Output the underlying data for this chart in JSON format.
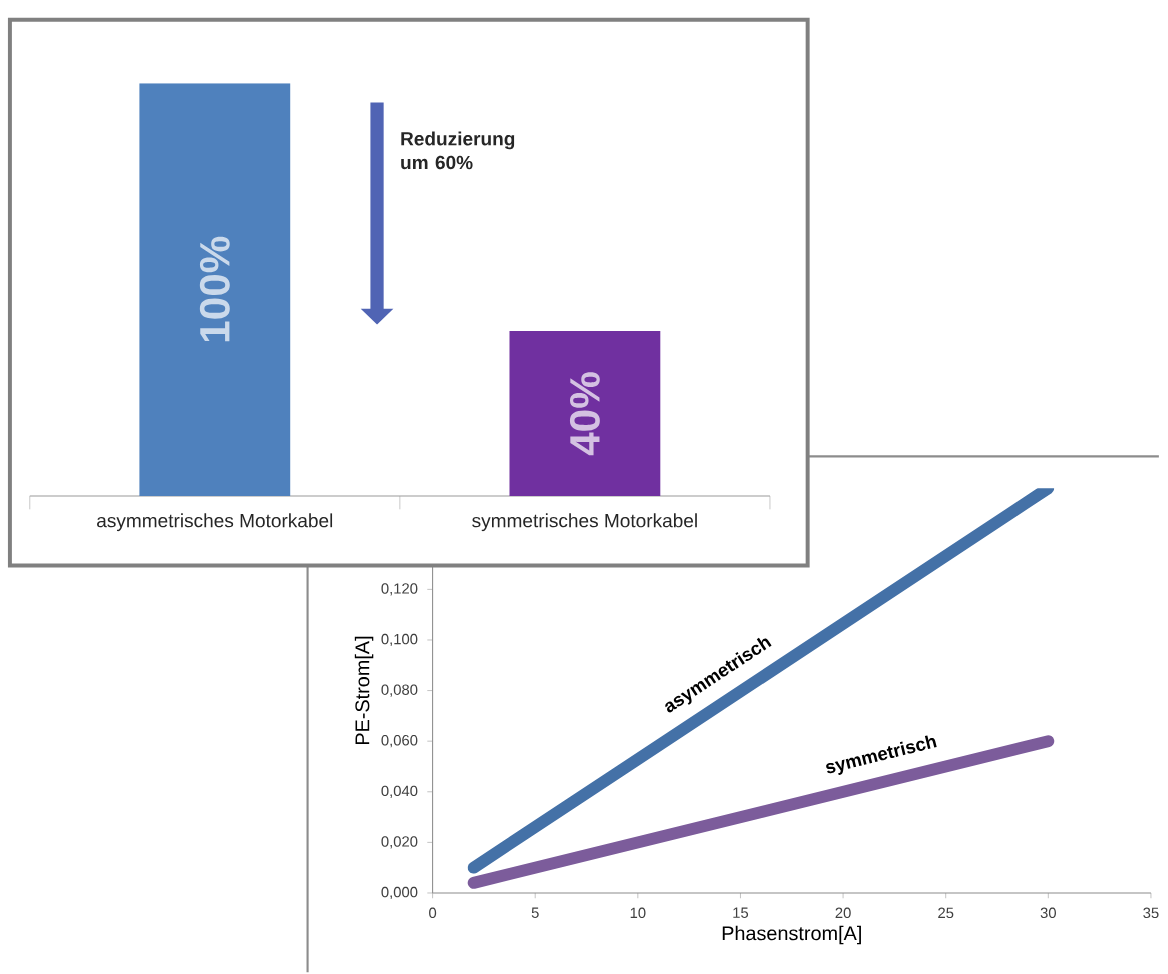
{
  "chart_data": [
    {
      "type": "bar",
      "categories": [
        "asymmetrisches Motorkabel",
        "symmetrisches Motorkabel"
      ],
      "values": [
        100,
        40
      ],
      "colors": [
        "#4f81bd",
        "#7030a0"
      ],
      "value_labels": [
        "100%",
        "40%"
      ],
      "annotations": [
        "Reduzierung um 60%"
      ]
    },
    {
      "type": "line",
      "xlabel": "Phasenstrom[A]",
      "ylabel": "PE-Strom[A]",
      "xlim": [
        0,
        35
      ],
      "xticks": [
        0,
        5,
        10,
        15,
        20,
        25,
        30,
        35
      ],
      "ylim": [
        0,
        0.16
      ],
      "yticks": [
        {
          "value": 0,
          "label": "0,000"
        },
        {
          "value": 0.02,
          "label": "0,020"
        },
        {
          "value": 0.04,
          "label": "0,040"
        },
        {
          "value": 0.06,
          "label": "0,060"
        },
        {
          "value": 0.08,
          "label": "0,080"
        },
        {
          "value": 0.1,
          "label": "0,100"
        },
        {
          "value": 0.12,
          "label": "0,120"
        }
      ],
      "marker": "none",
      "line_style": "solid",
      "x": [
        2,
        30
      ],
      "series": [
        {
          "name": "asymmetrisch",
          "color": "#4471a7",
          "values": [
            0.01,
            0.16
          ]
        },
        {
          "name": "symmetrisch",
          "color": "#7c5c9b",
          "values": [
            0.004,
            0.06
          ]
        }
      ]
    }
  ]
}
